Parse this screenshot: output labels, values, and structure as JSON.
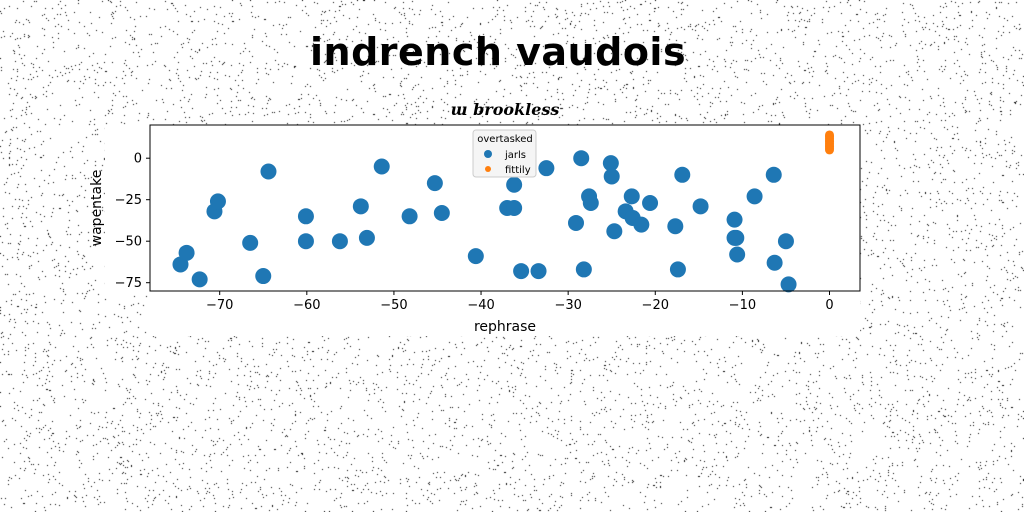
{
  "page": {
    "title": "indrench vaudois"
  },
  "chart_data": {
    "type": "scatter",
    "title": "ɯ brookless",
    "xlabel": "rephrase",
    "ylabel": "wapentake",
    "xlim": [
      -78,
      3.5
    ],
    "ylim": [
      -80,
      20
    ],
    "xticks": [
      -70,
      -60,
      -50,
      -40,
      -30,
      -20,
      -10,
      0
    ],
    "yticks": [
      0,
      -25,
      -50,
      -75
    ],
    "xtick_labels": [
      "−70",
      "−60",
      "−50",
      "−40",
      "−30",
      "−20",
      "−10",
      "0"
    ],
    "ytick_labels": [
      "0",
      "−25",
      "−50",
      "−75"
    ],
    "grid": false,
    "legend": {
      "title": "overtasked",
      "placement": "top-center"
    },
    "series": [
      {
        "name": "jarls",
        "color": "#1f77b4",
        "x": [
          -74.5,
          -73.8,
          -72.3,
          -70.6,
          -70.2,
          -66.5,
          -65,
          -64.4,
          -60.1,
          -60.1,
          -56.2,
          -53.8,
          -53.1,
          -51.4,
          -48.2,
          -45.3,
          -44.5,
          -40.6,
          -37,
          -36.2,
          -36.2,
          -35.4,
          -33.4,
          -32.5,
          -29.1,
          -28.5,
          -28.2,
          -27.6,
          -27.4,
          -25.1,
          -25,
          -24.7,
          -23.4,
          -22.7,
          -22.6,
          -21.6,
          -20.6,
          -17.7,
          -17.4,
          -16.9,
          -14.8,
          -10.9,
          -10.9,
          -10.7,
          -10.6,
          -8.6,
          -6.4,
          -6.3,
          -5,
          -4.7
        ],
        "y": [
          -64,
          -57,
          -73,
          -32,
          -26,
          -51,
          -71,
          -8,
          -35,
          -50,
          -50,
          -29,
          -48,
          -5,
          -35,
          -15,
          -33,
          -59,
          -30,
          -30,
          -16,
          -68,
          -68,
          -6,
          -39,
          0,
          -67,
          -23,
          -27,
          -3,
          -11,
          -44,
          -32,
          -23,
          -36,
          -40,
          -27,
          -41,
          -67,
          -10,
          -29,
          -37,
          -48,
          -48,
          -58,
          -23,
          -10,
          -63,
          -50,
          -76
        ]
      },
      {
        "name": "fittily",
        "color": "#ff7f0e",
        "x": [
          0,
          0,
          0,
          0,
          0,
          0,
          0,
          0,
          0,
          0
        ],
        "y": [
          5,
          6,
          7,
          8,
          9,
          10,
          11,
          12,
          13,
          14
        ]
      }
    ]
  }
}
